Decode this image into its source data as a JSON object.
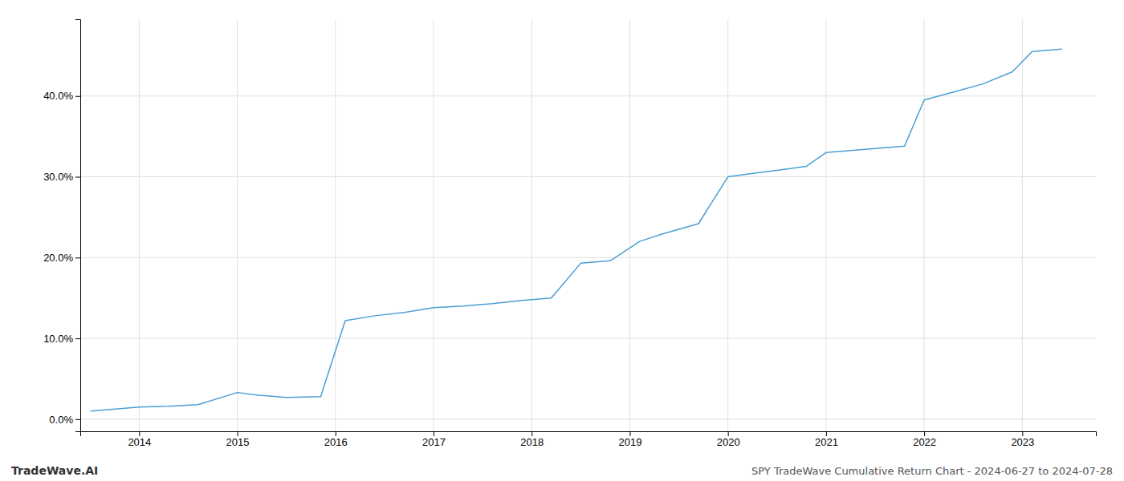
{
  "chart_data": {
    "type": "line",
    "title": "SPY TradeWave Cumulative Return Chart - 2024-06-27 to 2024-07-28",
    "annotations": [
      "TradeWave.AI"
    ],
    "x": [
      2013.51,
      2014.0,
      2014.3,
      2014.6,
      2015.0,
      2015.2,
      2015.5,
      2015.85,
      2016.1,
      2016.4,
      2016.7,
      2017.0,
      2017.3,
      2017.6,
      2017.9,
      2018.2,
      2018.5,
      2018.8,
      2019.1,
      2019.3,
      2019.5,
      2019.7,
      2020.0,
      2020.3,
      2020.5,
      2020.8,
      2021.0,
      2021.2,
      2021.5,
      2021.8,
      2022.0,
      2022.3,
      2022.6,
      2022.9,
      2023.1,
      2023.4
    ],
    "values": [
      0.01,
      0.015,
      0.016,
      0.018,
      0.033,
      0.03,
      0.027,
      0.028,
      0.122,
      0.128,
      0.132,
      0.138,
      0.14,
      0.143,
      0.147,
      0.15,
      0.193,
      0.196,
      0.22,
      0.228,
      0.235,
      0.242,
      0.3,
      0.305,
      0.308,
      0.313,
      0.33,
      0.332,
      0.335,
      0.338,
      0.395,
      0.405,
      0.415,
      0.43,
      0.455,
      0.458
    ],
    "color": "#4a9fd4",
    "xlim": [
      2013.4,
      2023.75
    ],
    "ylim": [
      -0.015,
      0.495
    ],
    "xticks": [
      2014,
      2015,
      2016,
      2017,
      2018,
      2019,
      2020,
      2021,
      2022,
      2023
    ],
    "yticks": [
      {
        "value": 0.0,
        "label": "0.0%"
      },
      {
        "value": 0.1,
        "label": "10.0%"
      },
      {
        "value": 0.2,
        "label": "20.0%"
      },
      {
        "value": 0.3,
        "label": "30.0%"
      },
      {
        "value": 0.4,
        "label": "40.0%"
      }
    ],
    "grid": true
  }
}
